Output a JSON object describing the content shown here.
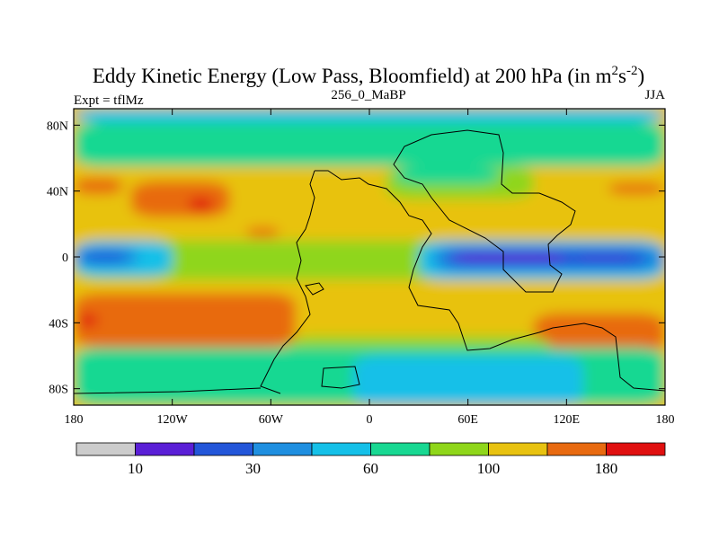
{
  "chart_data": {
    "type": "heatmap",
    "title": "Eddy Kinetic Energy (Low Pass, Bloomfield) at 200 hPa (in m",
    "title_units_sup_2": "2",
    "title_units_s": "s",
    "title_units_sup_neg2": "-2",
    "title_close": ")",
    "left_subtitle": "Expt = tflMz",
    "center_subtitle": "256_0_MaBP",
    "right_subtitle": "JJA",
    "x_range": [
      -180,
      180
    ],
    "y_range": [
      -90,
      90
    ],
    "x_ticks": [
      {
        "value": -180,
        "label": "180"
      },
      {
        "value": -120,
        "label": "120W"
      },
      {
        "value": -60,
        "label": "60W"
      },
      {
        "value": 0,
        "label": "0"
      },
      {
        "value": 60,
        "label": "60E"
      },
      {
        "value": 120,
        "label": "120E"
      },
      {
        "value": 180,
        "label": "180"
      }
    ],
    "y_ticks": [
      {
        "value": 80,
        "label": "80N"
      },
      {
        "value": 40,
        "label": "40N"
      },
      {
        "value": 0,
        "label": "0"
      },
      {
        "value": -40,
        "label": "40S"
      },
      {
        "value": -80,
        "label": "80S"
      }
    ],
    "colorbar": {
      "colors": [
        "#cccccc",
        "#5a1fd6",
        "#2356d9",
        "#1f8fe0",
        "#15c0e8",
        "#18d892",
        "#8fd61a",
        "#e8c210",
        "#e86a10",
        "#e01010"
      ],
      "labels": [
        {
          "boundary": 1,
          "label": "10"
        },
        {
          "boundary": 3,
          "label": "30"
        },
        {
          "boundary": 5,
          "label": "60"
        },
        {
          "boundary": 7,
          "label": "100"
        },
        {
          "boundary": 9,
          "label": "180"
        }
      ]
    },
    "contour_levels_index": "0=gray,1=purple,2=blue,3=mid-blue,4=cyan,5=teal,6=green,7=yellow,8=orange,9=red",
    "field_regions": [
      {
        "name": "band-70N",
        "lon": [
          -180,
          180
        ],
        "lat": [
          55,
          82
        ],
        "level": 5
      },
      {
        "name": "north-pole",
        "lon": [
          -180,
          180
        ],
        "lat": [
          82,
          90
        ],
        "level": 4
      },
      {
        "name": "north-mid-band",
        "lon": [
          -180,
          180
        ],
        "lat": [
          8,
          55
        ],
        "level": 7
      },
      {
        "name": "jet-north-west",
        "lon": [
          -180,
          -150
        ],
        "lat": [
          38,
          48
        ],
        "level": 8
      },
      {
        "name": "jet-north-central",
        "lon": [
          -145,
          -85
        ],
        "lat": [
          24,
          46
        ],
        "level": 8
      },
      {
        "name": "jet-north-core",
        "lon": [
          -110,
          -95
        ],
        "lat": [
          28,
          36
        ],
        "level": 9
      },
      {
        "name": "jet-north-small",
        "lon": [
          -75,
          -55
        ],
        "lat": [
          12,
          18
        ],
        "level": 8
      },
      {
        "name": "jet-north-east",
        "lon": [
          145,
          180
        ],
        "lat": [
          38,
          45
        ],
        "level": 8
      },
      {
        "name": "green-north-east",
        "lon": [
          10,
          100
        ],
        "lat": [
          35,
          55
        ],
        "level": 6
      },
      {
        "name": "teal-north-east",
        "lon": [
          15,
          80
        ],
        "lat": [
          44,
          55
        ],
        "level": 5
      },
      {
        "name": "tropics-band",
        "lon": [
          -180,
          180
        ],
        "lat": [
          -14,
          10
        ],
        "level": 6
      },
      {
        "name": "tropic-west-cyan",
        "lon": [
          -180,
          -120
        ],
        "lat": [
          -12,
          10
        ],
        "level": 4
      },
      {
        "name": "tropic-west-blue",
        "lon": [
          -180,
          -140
        ],
        "lat": [
          -6,
          6
        ],
        "level": 3
      },
      {
        "name": "tropic-west-deep",
        "lon": [
          -175,
          -148
        ],
        "lat": [
          -3,
          3
        ],
        "level": 2
      },
      {
        "name": "tropic-east-cyan",
        "lon": [
          30,
          180
        ],
        "lat": [
          -14,
          10
        ],
        "level": 4
      },
      {
        "name": "tropic-east-blue",
        "lon": [
          38,
          180
        ],
        "lat": [
          -9,
          7
        ],
        "level": 3
      },
      {
        "name": "tropic-east-deep",
        "lon": [
          45,
          170
        ],
        "lat": [
          -6,
          4
        ],
        "level": 2
      },
      {
        "name": "tropic-east-core",
        "lon": [
          50,
          120
        ],
        "lat": [
          -3,
          3
        ],
        "level": 1
      },
      {
        "name": "tropic-east-core2",
        "lon": [
          125,
          160
        ],
        "lat": [
          -1,
          1
        ],
        "level": 1
      },
      {
        "name": "south-mid-band",
        "lon": [
          -180,
          180
        ],
        "lat": [
          -55,
          -14
        ],
        "level": 7
      },
      {
        "name": "jet-south-west",
        "lon": [
          -180,
          -45
        ],
        "lat": [
          -55,
          -22
        ],
        "level": 8
      },
      {
        "name": "jet-south-core",
        "lon": [
          -178,
          -165
        ],
        "lat": [
          -42,
          -35
        ],
        "level": 9
      },
      {
        "name": "jet-south-east",
        "lon": [
          100,
          180
        ],
        "lat": [
          -58,
          -34
        ],
        "level": 8
      },
      {
        "name": "green-south-central",
        "lon": [
          -50,
          110
        ],
        "lat": [
          -60,
          -48
        ],
        "level": 6
      },
      {
        "name": "south-teal-band",
        "lon": [
          -180,
          180
        ],
        "lat": [
          -90,
          -55
        ],
        "level": 5
      },
      {
        "name": "south-cyan",
        "lon": [
          -10,
          130
        ],
        "lat": [
          -90,
          -60
        ],
        "level": 4
      }
    ],
    "coastlines": [
      "americas-outline",
      "africa-eurasia-outline",
      "antarctica-outline"
    ]
  }
}
